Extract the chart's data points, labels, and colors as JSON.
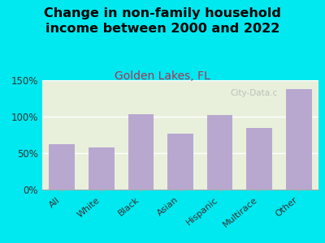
{
  "title": "Change in non-family household\nincome between 2000 and 2022",
  "subtitle": "Golden Lakes, FL",
  "categories": [
    "All",
    "White",
    "Black",
    "Asian",
    "Hispanic",
    "Multirace",
    "Other"
  ],
  "values": [
    62,
    58,
    103,
    77,
    102,
    85,
    138
  ],
  "bar_color": "#b8a8d0",
  "title_fontsize": 11.5,
  "subtitle_fontsize": 10,
  "subtitle_color": "#aa3355",
  "title_color": "#000000",
  "background_outer": "#00e8f0",
  "background_inner": "#e8f0dc",
  "ylim": [
    0,
    150
  ],
  "yticks": [
    0,
    50,
    100,
    150
  ],
  "ytick_labels": [
    "0%",
    "50%",
    "100%",
    "150%"
  ],
  "watermark": "City-Data.c",
  "watermark_color": "#aaaaaa"
}
